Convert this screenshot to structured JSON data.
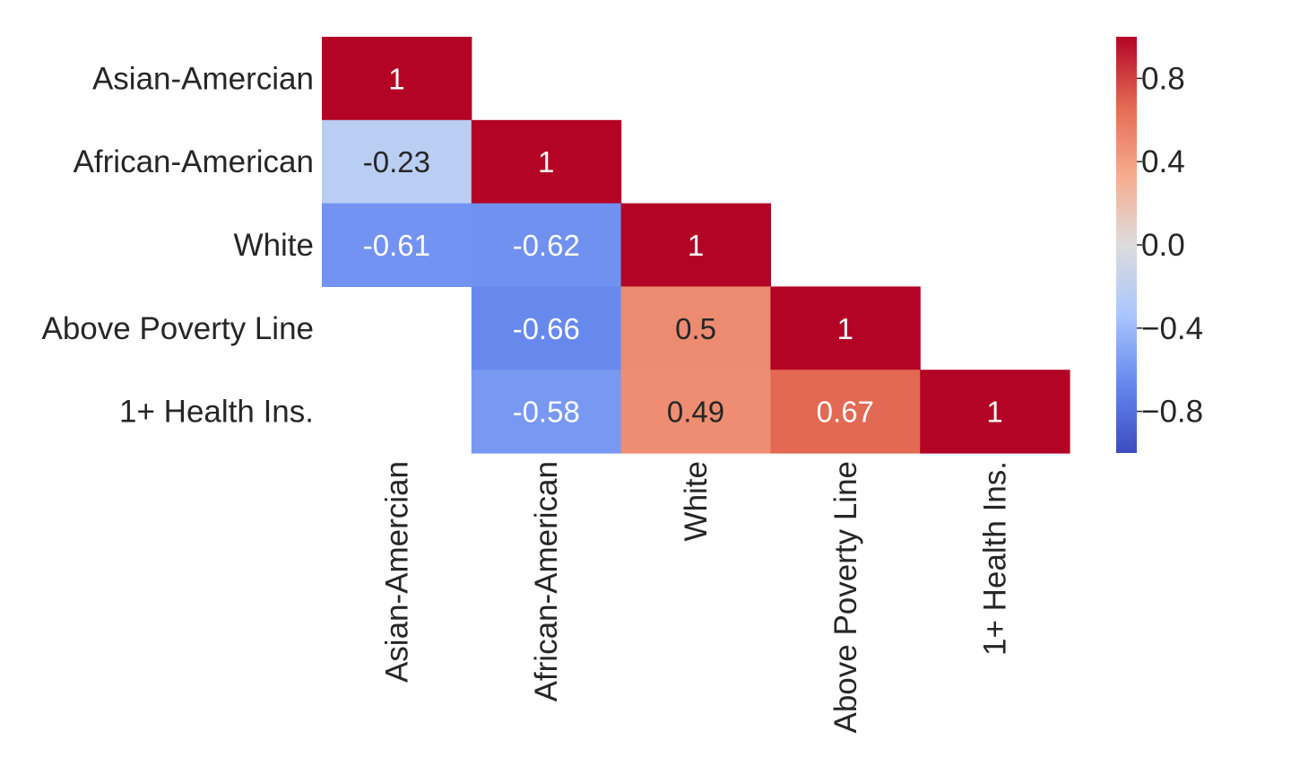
{
  "chart_data": {
    "type": "heatmap",
    "title": "",
    "xlabel": "",
    "ylabel": "",
    "mask": "upper-triangle",
    "rows": [
      "Asian-Amercian",
      "African-American",
      "White",
      "Above Poverty Line",
      "1+ Health Ins."
    ],
    "columns": [
      "Asian-Amercian",
      "African-American",
      "White",
      "Above Poverty Line",
      "1+ Health Ins."
    ],
    "values": [
      [
        1,
        null,
        null,
        null,
        null
      ],
      [
        -0.23,
        1,
        null,
        null,
        null
      ],
      [
        -0.61,
        -0.62,
        1,
        null,
        null
      ],
      [
        null,
        -0.66,
        0.5,
        1,
        null
      ],
      [
        null,
        -0.58,
        0.49,
        0.67,
        1
      ]
    ],
    "cell_labels": [
      [
        "1",
        "",
        "",
        "",
        ""
      ],
      [
        "-0.23",
        "1",
        "",
        "",
        ""
      ],
      [
        "-0.61",
        "-0.62",
        "1",
        "",
        ""
      ],
      [
        "",
        "-0.66",
        "0.5",
        "1",
        ""
      ],
      [
        "",
        "-0.58",
        "0.49",
        "0.67",
        "1"
      ]
    ],
    "colormap": "coolwarm",
    "colormap_stops": [
      "#3b4cc0",
      "#6688ee",
      "#aac7fd",
      "#dddcdc",
      "#f7ac8e",
      "#e36a53",
      "#b40426"
    ],
    "colorbar": {
      "vmin": -1,
      "vmax": 1,
      "tick_values": [
        0.8,
        0.4,
        0.0,
        -0.4,
        -0.8
      ],
      "tick_labels": [
        "0.8",
        "0.4",
        "0.0",
        "−0.4",
        "−0.8"
      ]
    },
    "grid": false,
    "legend": "colorbar-right"
  }
}
